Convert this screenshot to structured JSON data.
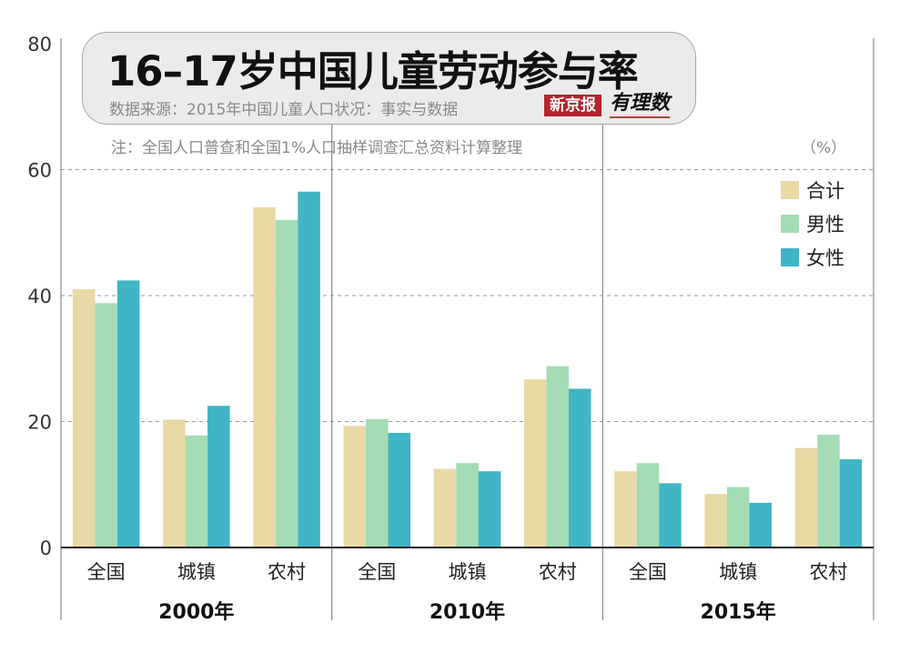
{
  "title": "16–17岁中国儿童劳动参与率",
  "source": "数据来源：2015年中国儿童人口状况：事实与数据",
  "note": "注：全国人口普查和全国1%人口抽样调查汇总资料计算整理",
  "unit": "（%）",
  "logo": {
    "main": "新京报",
    "sub": "有理数"
  },
  "colors": {
    "合计": "#e8d9a5",
    "男性": "#a3dcb4",
    "女性": "#3fb5c6"
  },
  "chart_data": {
    "type": "bar",
    "groups": [
      "2000年",
      "2010年",
      "2015年"
    ],
    "categories": [
      "全国",
      "城镇",
      "农村"
    ],
    "series": [
      {
        "name": "合计",
        "values": [
          [
            41.0,
            20.3,
            54.0
          ],
          [
            19.3,
            12.5,
            26.7
          ],
          [
            12.1,
            8.5,
            15.8
          ]
        ]
      },
      {
        "name": "男性",
        "values": [
          [
            38.8,
            17.8,
            52.0
          ],
          [
            20.4,
            13.4,
            28.8
          ],
          [
            13.4,
            9.6,
            17.9
          ]
        ]
      },
      {
        "name": "女性",
        "values": [
          [
            42.4,
            22.5,
            56.5
          ],
          [
            18.2,
            12.1,
            25.2
          ],
          [
            10.2,
            7.1,
            14.0
          ]
        ]
      }
    ],
    "ylim": [
      0,
      80
    ],
    "yticks": [
      "0",
      "20",
      "40",
      "60",
      "80"
    ],
    "grid": true,
    "legend_position": "top-right"
  }
}
